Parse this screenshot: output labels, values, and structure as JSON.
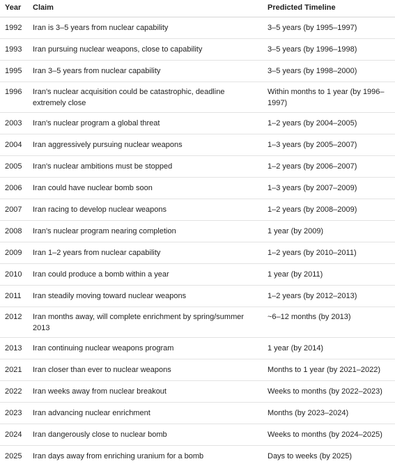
{
  "table": {
    "headers": {
      "year": "Year",
      "claim": "Claim",
      "timeline": "Predicted Timeline"
    },
    "rows": [
      {
        "year": "1992",
        "claim": "Iran is 3–5 years from nuclear capability",
        "timeline": "3–5 years (by 1995–1997)"
      },
      {
        "year": "1993",
        "claim": "Iran pursuing nuclear weapons, close to capability",
        "timeline": "3–5 years (by 1996–1998)"
      },
      {
        "year": "1995",
        "claim": "Iran 3–5 years from nuclear capability",
        "timeline": "3–5 years (by 1998–2000)"
      },
      {
        "year": "1996",
        "claim": "Iran's nuclear acquisition could be catastrophic, deadline extremely close",
        "timeline": "Within months to 1 year (by 1996–1997)"
      },
      {
        "year": "2003",
        "claim": "Iran's nuclear program a global threat",
        "timeline": "1–2 years (by 2004–2005)"
      },
      {
        "year": "2004",
        "claim": "Iran aggressively pursuing nuclear weapons",
        "timeline": "1–3 years (by 2005–2007)"
      },
      {
        "year": "2005",
        "claim": "Iran's nuclear ambitions must be stopped",
        "timeline": "1–2 years (by 2006–2007)"
      },
      {
        "year": "2006",
        "claim": "Iran could have nuclear bomb soon",
        "timeline": "1–3 years (by 2007–2009)"
      },
      {
        "year": "2007",
        "claim": "Iran racing to develop nuclear weapons",
        "timeline": "1–2 years (by 2008–2009)"
      },
      {
        "year": "2008",
        "claim": "Iran's nuclear program nearing completion",
        "timeline": "1 year (by 2009)"
      },
      {
        "year": "2009",
        "claim": "Iran 1–2 years from nuclear capability",
        "timeline": "1–2 years (by 2010–2011)"
      },
      {
        "year": "2010",
        "claim": "Iran could produce a bomb within a year",
        "timeline": "1 year (by 2011)"
      },
      {
        "year": "2011",
        "claim": "Iran steadily moving toward nuclear weapons",
        "timeline": "1–2 years (by 2012–2013)"
      },
      {
        "year": "2012",
        "claim": "Iran months away, will complete enrichment by spring/summer 2013",
        "timeline": "~6–12 months (by 2013)"
      },
      {
        "year": "2013",
        "claim": "Iran continuing nuclear weapons program",
        "timeline": "1 year (by 2014)"
      },
      {
        "year": "2021",
        "claim": "Iran closer than ever to nuclear weapons",
        "timeline": "Months to 1 year (by 2021–2022)"
      },
      {
        "year": "2022",
        "claim": "Iran weeks away from nuclear breakout",
        "timeline": "Weeks to months (by 2022–2023)"
      },
      {
        "year": "2023",
        "claim": "Iran advancing nuclear enrichment",
        "timeline": "Months (by 2023–2024)"
      },
      {
        "year": "2024",
        "claim": "Iran dangerously close to nuclear bomb",
        "timeline": "Weeks to months (by 2024–2025)"
      },
      {
        "year": "2025",
        "claim": "Iran days away from enriching uranium for a bomb",
        "timeline": "Days to weeks (by 2025)"
      }
    ]
  }
}
